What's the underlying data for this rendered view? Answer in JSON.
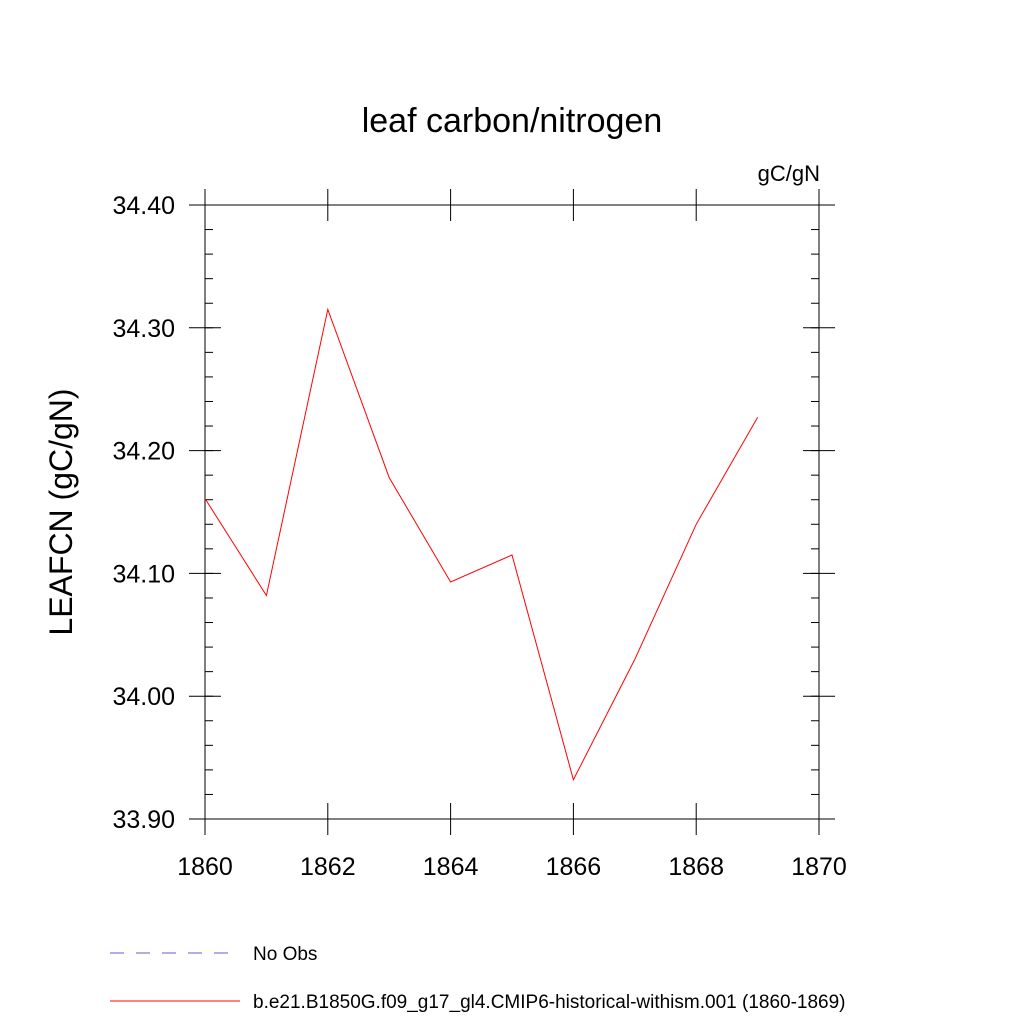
{
  "chart_data": {
    "type": "line",
    "title": "leaf carbon/nitrogen",
    "units_label": "gC/gN",
    "ylabel": "LEAFCN  (gC/gN)",
    "xlabel": "",
    "xlim": [
      1860,
      1870
    ],
    "ylim": [
      33.9,
      34.4
    ],
    "x_ticks": [
      1860,
      1862,
      1864,
      1866,
      1868,
      1870
    ],
    "x_tick_labels": [
      "1860",
      "1862",
      "1864",
      "1866",
      "1868",
      "1870"
    ],
    "y_ticks": [
      33.9,
      34.0,
      34.1,
      34.2,
      34.3,
      34.4
    ],
    "y_tick_labels": [
      "33.90",
      "34.00",
      "34.10",
      "34.20",
      "34.30",
      "34.40"
    ],
    "grid": false,
    "legend_position": "bottom-left",
    "series": [
      {
        "name": "b.e21.B1850G.f09_g17_gl4.CMIP6-historical-withism.001 (1860-1869)",
        "color": "#ff0000",
        "line_style": "solid",
        "x": [
          1860,
          1861,
          1862,
          1863,
          1864,
          1865,
          1866,
          1867,
          1868,
          1869
        ],
        "y": [
          34.161,
          34.082,
          34.315,
          34.178,
          34.093,
          34.115,
          33.932,
          34.03,
          34.14,
          34.227
        ]
      }
    ],
    "legend": [
      {
        "label": "No Obs",
        "color": "#6a5acd",
        "line_style": "dashed"
      },
      {
        "label": "b.e21.B1850G.f09_g17_gl4.CMIP6-historical-withism.001 (1860-1869)",
        "color": "#ff0000",
        "line_style": "solid"
      }
    ]
  }
}
